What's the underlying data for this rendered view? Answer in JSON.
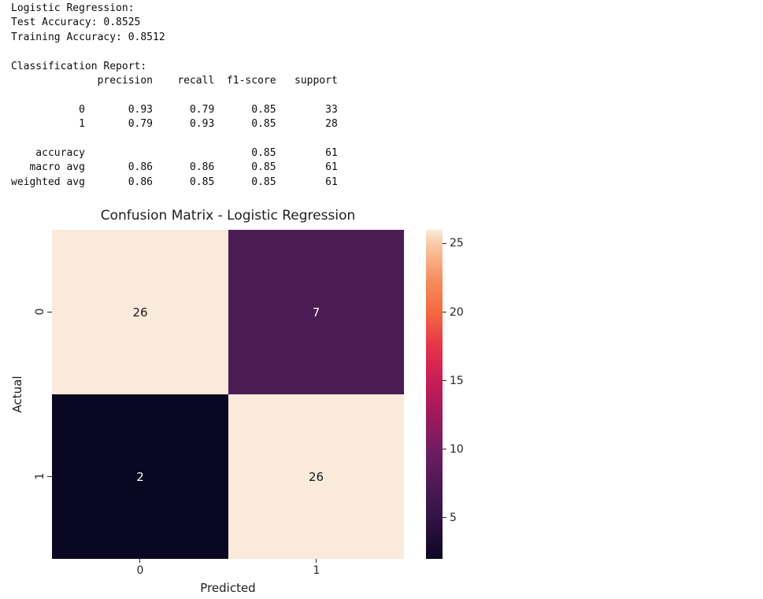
{
  "console": {
    "lines": [
      "Logistic Regression:",
      "Test Accuracy: 0.8525",
      "Training Accuracy: 0.8512",
      "",
      "Classification Report:",
      "              precision    recall  f1-score   support",
      "",
      "           0       0.93      0.79      0.85        33",
      "           1       0.79      0.93      0.85        28",
      "",
      "    accuracy                           0.85        61",
      "   macro avg       0.86      0.86      0.85        61",
      "weighted avg       0.86      0.85      0.85        61"
    ]
  },
  "chart_data": {
    "type": "heatmap",
    "title": "Confusion Matrix - Logistic Regression",
    "xlabel": "Predicted",
    "ylabel": "Actual",
    "x_tick_labels": [
      "0",
      "1"
    ],
    "y_tick_labels": [
      "0",
      "1"
    ],
    "values": [
      [
        26,
        7
      ],
      [
        2,
        26
      ]
    ],
    "vmin": 2,
    "vmax": 26,
    "colormap": "rocket",
    "legend_position": "right-colorbar",
    "grid": false,
    "colorbar_ticks": [
      5,
      10,
      15,
      20,
      25
    ],
    "cell_colors": [
      [
        "#f9eadc",
        "#4b1c53"
      ],
      [
        "#0a0722",
        "#f9eadc"
      ]
    ],
    "cell_text_colors": [
      [
        "#1a1a1a",
        "#ffffff"
      ],
      [
        "#ffffff",
        "#1a1a1a"
      ]
    ],
    "colorbar_gradient": [
      {
        "pos": 0,
        "color": "#0a0622"
      },
      {
        "pos": 12.5,
        "color": "#331445"
      },
      {
        "pos": 23,
        "color": "#4e1a56"
      },
      {
        "pos": 33,
        "color": "#6f1d60"
      },
      {
        "pos": 44,
        "color": "#a11a5c"
      },
      {
        "pos": 54,
        "color": "#c81d56"
      },
      {
        "pos": 65,
        "color": "#e63649"
      },
      {
        "pos": 75,
        "color": "#f4693f"
      },
      {
        "pos": 85,
        "color": "#f68e5f"
      },
      {
        "pos": 96,
        "color": "#f8cba9"
      },
      {
        "pos": 100,
        "color": "#faeadc"
      }
    ]
  }
}
